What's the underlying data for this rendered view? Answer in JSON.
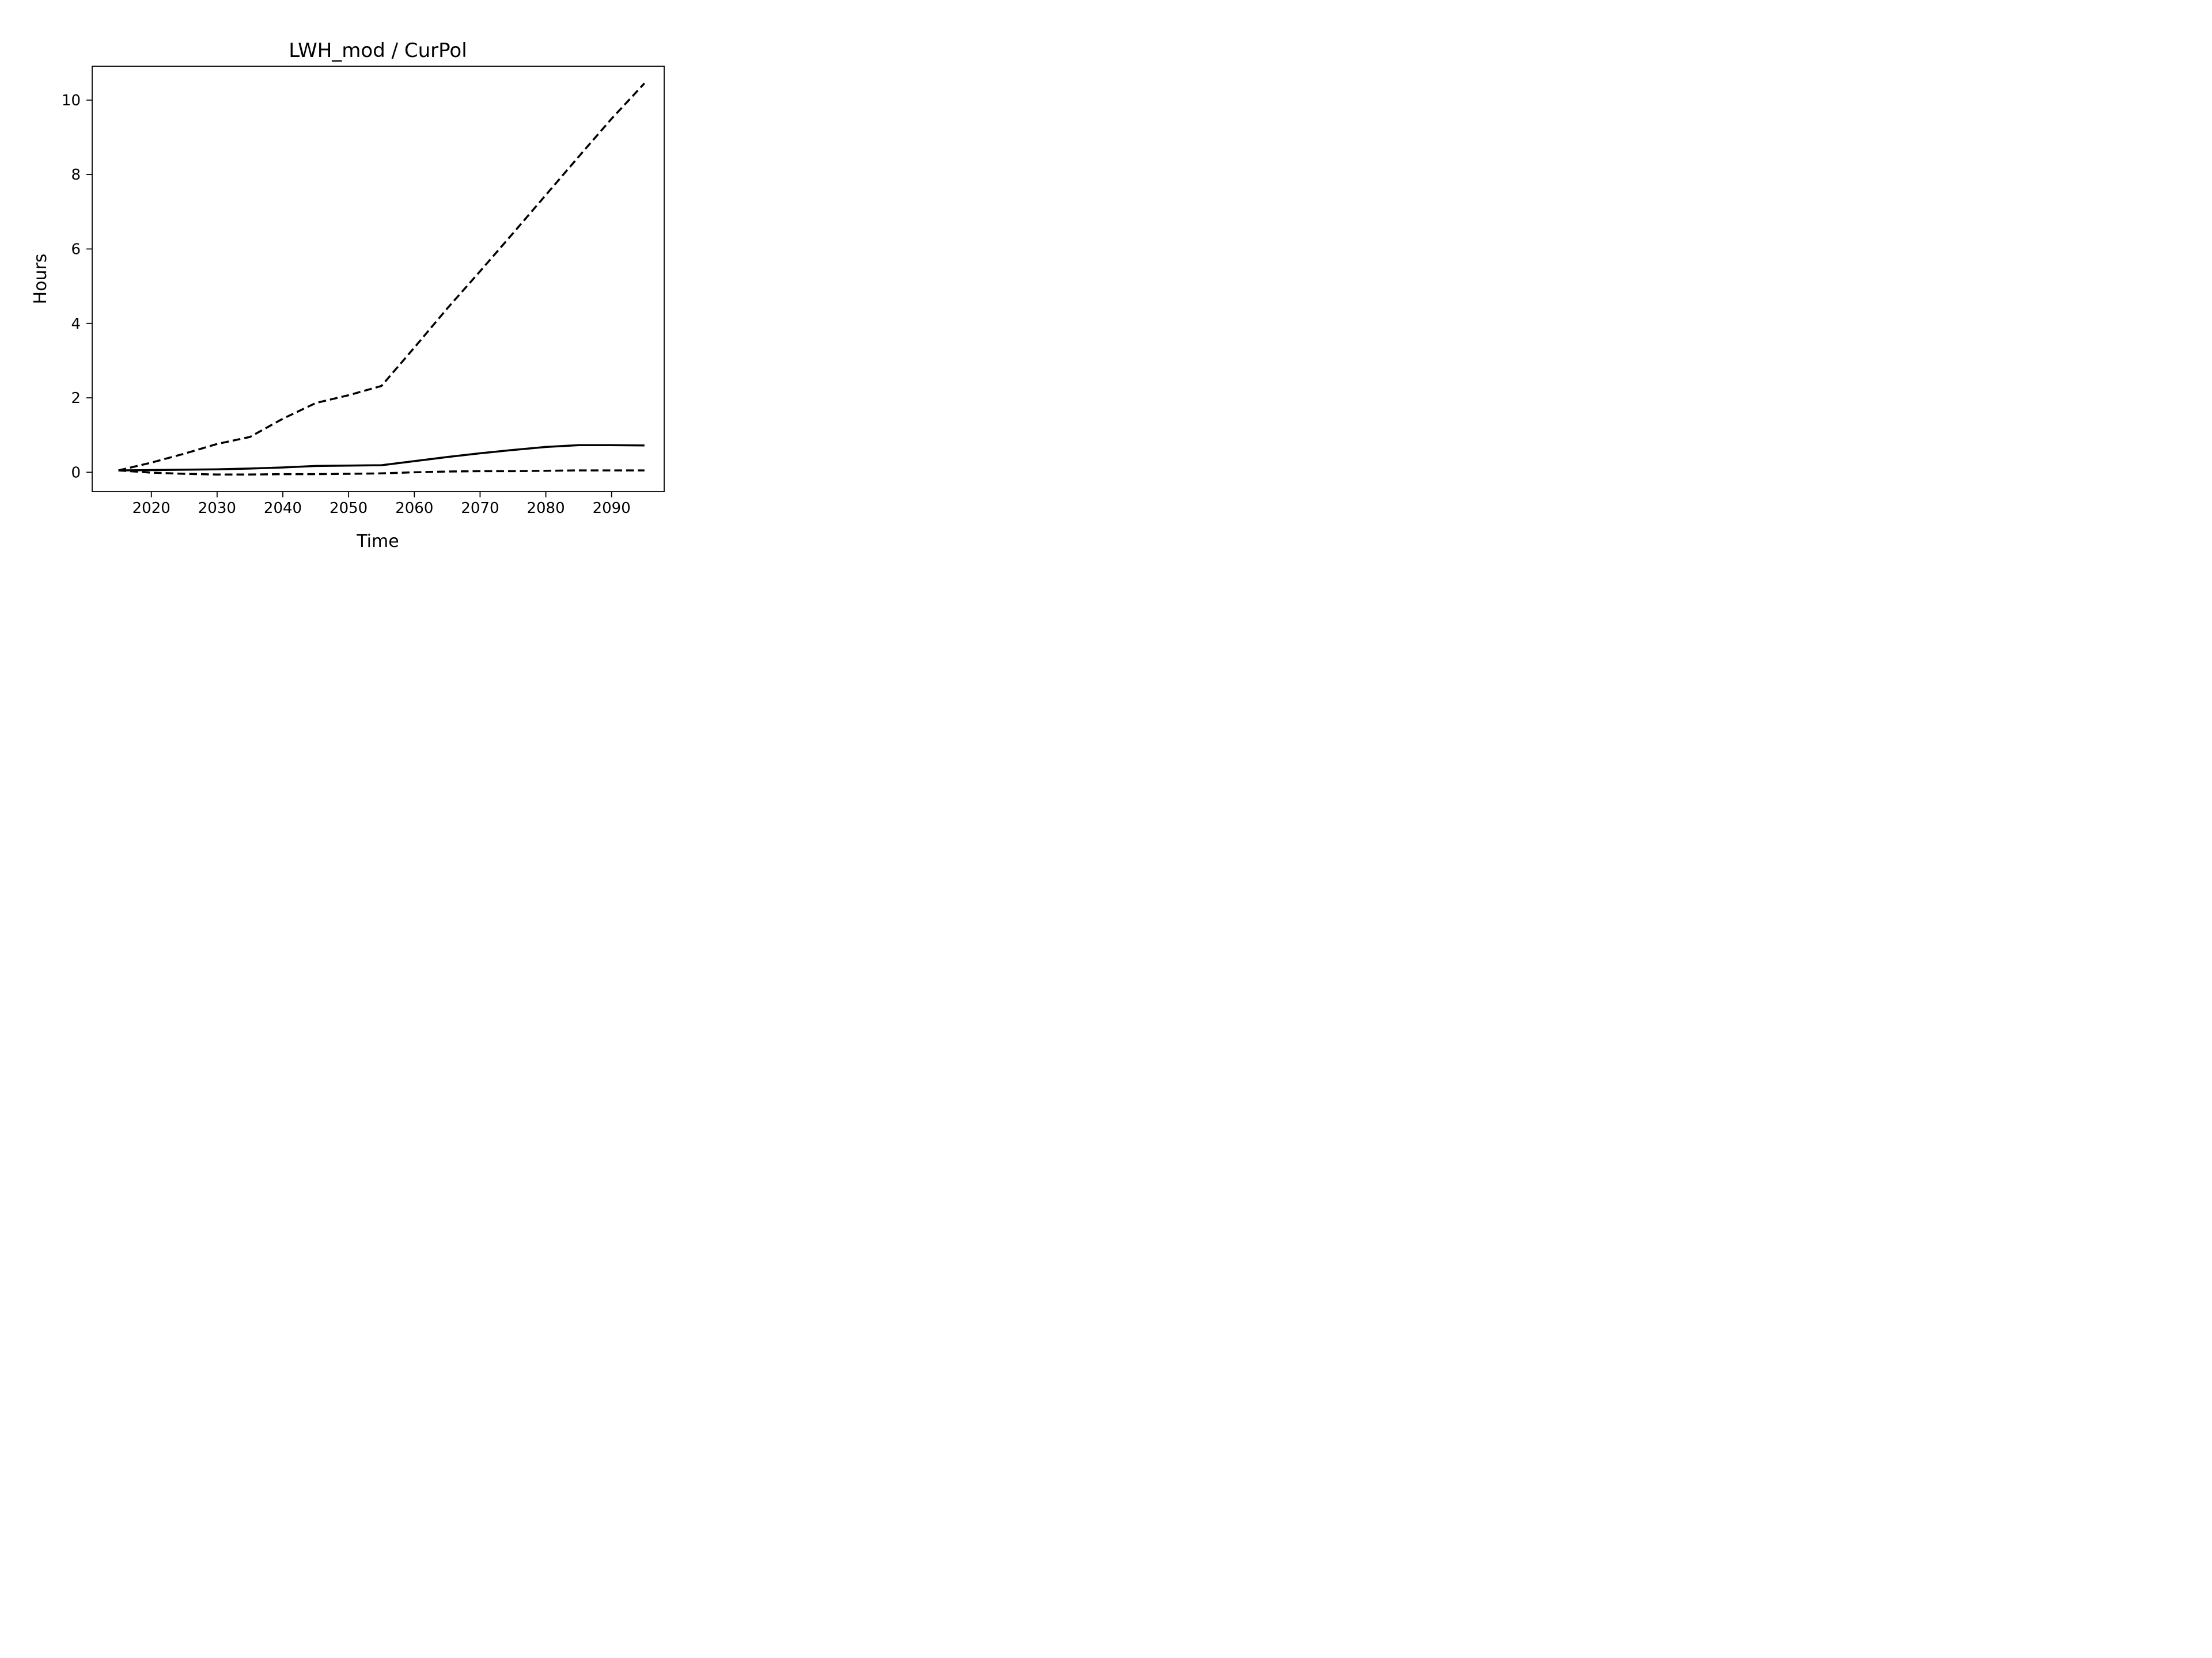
{
  "figure": {
    "background": "#ffffff",
    "foreground": "#000000"
  },
  "chart_data": {
    "type": "line",
    "title": "LWH_mod / CurPol",
    "xlabel": "Time",
    "ylabel": "Hours",
    "xlim": [
      2011,
      2098
    ],
    "ylim": [
      -0.52,
      10.91
    ],
    "xticks": [
      2020,
      2030,
      2040,
      2050,
      2060,
      2070,
      2080,
      2090
    ],
    "yticks": [
      0,
      2,
      4,
      6,
      8,
      10
    ],
    "grid": false,
    "legend": null,
    "line_color": "#000000",
    "x": [
      2015,
      2020,
      2025,
      2030,
      2035,
      2040,
      2045,
      2050,
      2055,
      2060,
      2065,
      2070,
      2075,
      2080,
      2085,
      2090,
      2095
    ],
    "series": [
      {
        "name": "upper-dashed",
        "linestyle": "dashed",
        "color": "#000000",
        "values": [
          0.05,
          0.26,
          0.5,
          0.76,
          0.95,
          1.44,
          1.86,
          2.07,
          2.32,
          3.35,
          4.4,
          5.4,
          6.42,
          7.45,
          8.48,
          9.5,
          10.45
        ]
      },
      {
        "name": "solid",
        "linestyle": "solid",
        "color": "#000000",
        "values": [
          0.05,
          0.06,
          0.07,
          0.08,
          0.1,
          0.13,
          0.17,
          0.18,
          0.19,
          0.3,
          0.41,
          0.51,
          0.6,
          0.68,
          0.73,
          0.73,
          0.72
        ]
      },
      {
        "name": "lower-dashed",
        "linestyle": "dashed",
        "color": "#000000",
        "values": [
          0.05,
          -0.01,
          -0.04,
          -0.06,
          -0.06,
          -0.05,
          -0.05,
          -0.04,
          -0.03,
          0.0,
          0.02,
          0.03,
          0.03,
          0.04,
          0.05,
          0.05,
          0.05
        ]
      }
    ]
  }
}
